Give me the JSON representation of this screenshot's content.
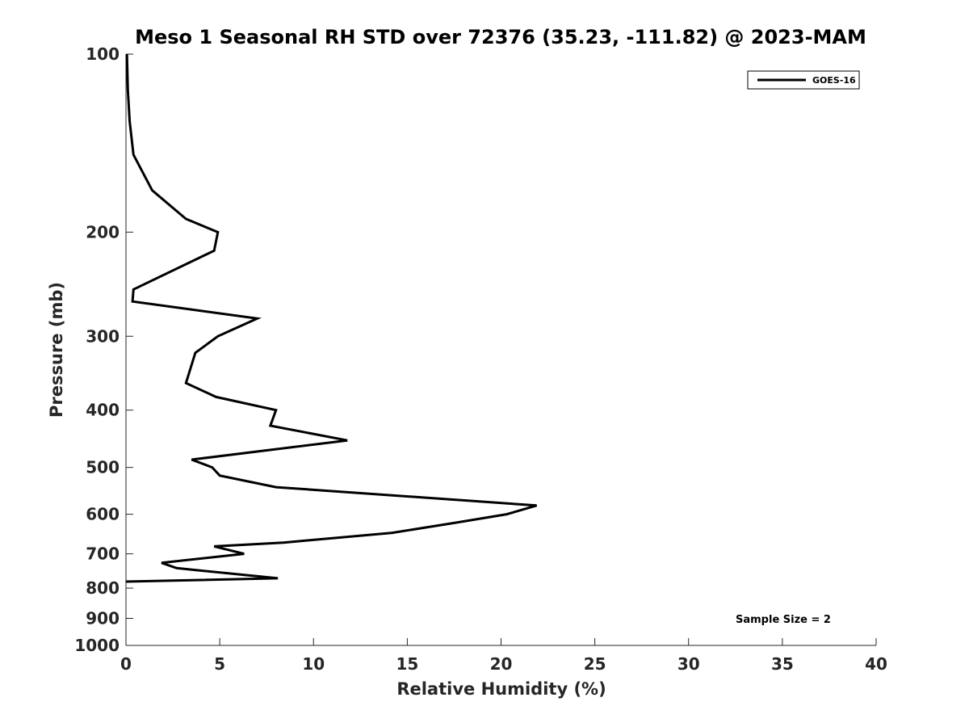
{
  "chart_data": {
    "type": "line",
    "title": "Meso 1 Seasonal RH STD over 72376 (35.23, -111.82) @ 2023-MAM",
    "xlabel": "Relative Humidity (%)",
    "ylabel": "Pressure (mb)",
    "xlim": [
      0,
      40
    ],
    "ylim": [
      100,
      1000
    ],
    "y_scale": "log",
    "y_reversed": true,
    "x_ticks": [
      0,
      5,
      10,
      15,
      20,
      25,
      30,
      35,
      40
    ],
    "x_tick_labels": [
      "0",
      "5",
      "10",
      "15",
      "20",
      "25",
      "30",
      "35",
      "40"
    ],
    "y_ticks": [
      100,
      200,
      300,
      400,
      500,
      600,
      700,
      800,
      900,
      1000
    ],
    "y_tick_labels": [
      "100",
      "200",
      "300",
      "400",
      "500",
      "600",
      "700",
      "800",
      "900",
      "1000"
    ],
    "grid": false,
    "legend_position": "top-right",
    "annotation": "Sample Size = 2",
    "series": [
      {
        "name": "GOES-16",
        "color": "#000000",
        "x": [
          0.05,
          0.1,
          0.2,
          0.4,
          1.4,
          3.2,
          4.9,
          4.7,
          0.4,
          0.35,
          7.0,
          4.9,
          3.7,
          3.2,
          4.8,
          8.0,
          7.7,
          11.8,
          3.5,
          4.6,
          5.0,
          8.0,
          21.9,
          20.3,
          17.6,
          14.2,
          8.4,
          4.7,
          6.3,
          1.9,
          2.7,
          8.1,
          0.0
        ],
        "y": [
          100,
          115,
          130,
          148,
          170,
          190,
          200,
          215,
          250,
          262,
          280,
          300,
          320,
          360,
          380,
          400,
          425,
          450,
          485,
          500,
          516,
          540,
          580,
          600,
          620,
          645,
          670,
          680,
          700,
          725,
          740,
          770,
          780
        ]
      }
    ]
  }
}
